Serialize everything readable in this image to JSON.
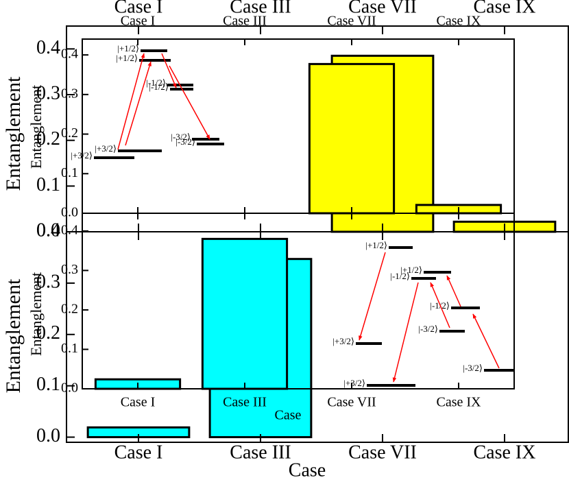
{
  "chart_data": [
    {
      "type": "bar",
      "ylabel": "Entanglement",
      "categories": [
        "Case I",
        "Case III",
        "Case VII",
        "Case IX"
      ],
      "values": [
        null,
        null,
        0.385,
        0.022
      ],
      "color": "#ffff00",
      "ylim": [
        0,
        0.45
      ],
      "yticks": [
        {
          "value": 0,
          "label": "0.0"
        },
        0.1,
        0.2,
        0.3,
        0.4
      ]
    },
    {
      "type": "bar",
      "ylabel": "Entanglement",
      "xlabel": "Case",
      "categories": [
        "Case I",
        "Case III",
        "Case VII",
        "Case IX"
      ],
      "values": [
        0.019,
        0.347,
        null,
        null
      ],
      "color": "#00ffff",
      "ylim": [
        -0.01,
        0.4
      ],
      "yticks": [
        {
          "value": 0,
          "label": "0.0"
        },
        0.1,
        0.2,
        0.3,
        0.4
      ]
    },
    {
      "type": "bar",
      "ylabel": "Entanglement",
      "categories": [
        "Case I",
        "Case III",
        "Case VII",
        "Case IX"
      ],
      "values": [
        null,
        null,
        0.377,
        0.021
      ],
      "color": "#ffff00",
      "ylim": [
        0,
        0.44
      ],
      "yticks": [
        {
          "value": 0,
          "label": "0.0"
        },
        0.1,
        0.2,
        0.3,
        0.4
      ],
      "annotations": [
        "|+1/2⟩",
        "|+1/2⟩",
        "|-1/2⟩",
        "|-1/2⟩",
        "|-3/2⟩",
        "|-3/2⟩",
        "|+3/2⟩",
        "|+3/2⟩"
      ]
    },
    {
      "type": "bar",
      "ylabel": "Entanglement",
      "xlabel": "Case",
      "categories": [
        "Case I",
        "Case III",
        "Case VII",
        "Case IX"
      ],
      "values": [
        0.024,
        0.38,
        null,
        null
      ],
      "color": "#00ffff",
      "ylim": [
        0,
        0.445
      ],
      "yticks": [
        {
          "value": 0,
          "label": "0.0"
        },
        0.1,
        0.2,
        0.3,
        0.4
      ],
      "annotations": [
        "|+1/2⟩",
        "|-1/2⟩",
        "|+1/2⟩",
        "|-1/2⟩",
        "|-3/2⟩",
        "|+3/2⟩",
        "|-3/2⟩",
        "|+3/2⟩"
      ]
    }
  ]
}
